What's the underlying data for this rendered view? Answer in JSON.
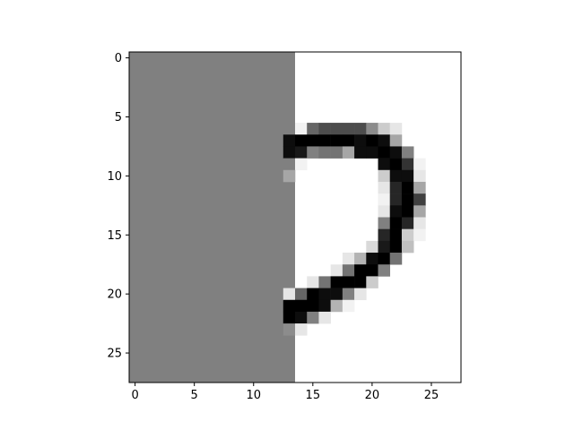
{
  "chart_data": {
    "type": "heatmap",
    "title": "",
    "xlabel": "",
    "ylabel": "",
    "colormap": "gray_r",
    "image_size": [
      28,
      28
    ],
    "xlim": [
      -0.5,
      27.5
    ],
    "ylim": [
      27.5,
      -0.5
    ],
    "x_ticks": [
      0,
      5,
      10,
      15,
      20,
      25
    ],
    "y_ticks": [
      0,
      5,
      10,
      15,
      20,
      25
    ],
    "x_tick_labels": [
      "0",
      "5",
      "10",
      "15",
      "20",
      "25"
    ],
    "y_tick_labels": [
      "0",
      "5",
      "10",
      "15",
      "20",
      "25"
    ],
    "masked_region": {
      "columns": [
        0,
        13
      ],
      "value": 0.5,
      "color": "#808080"
    },
    "pixels": [
      {
        "r": 6,
        "c": 14,
        "v": 0.05
      },
      {
        "r": 6,
        "c": 15,
        "v": 0.6
      },
      {
        "r": 6,
        "c": 16,
        "v": 0.7
      },
      {
        "r": 6,
        "c": 17,
        "v": 0.7
      },
      {
        "r": 6,
        "c": 18,
        "v": 0.7
      },
      {
        "r": 6,
        "c": 19,
        "v": 0.7
      },
      {
        "r": 6,
        "c": 20,
        "v": 0.45
      },
      {
        "r": 6,
        "c": 21,
        "v": 0.2
      },
      {
        "r": 6,
        "c": 22,
        "v": 0.1
      },
      {
        "r": 7,
        "c": 13,
        "v": 0.95
      },
      {
        "r": 7,
        "c": 14,
        "v": 1.0
      },
      {
        "r": 7,
        "c": 15,
        "v": 1.0
      },
      {
        "r": 7,
        "c": 16,
        "v": 1.0
      },
      {
        "r": 7,
        "c": 17,
        "v": 1.0
      },
      {
        "r": 7,
        "c": 18,
        "v": 1.0
      },
      {
        "r": 7,
        "c": 19,
        "v": 0.95
      },
      {
        "r": 7,
        "c": 20,
        "v": 1.0
      },
      {
        "r": 7,
        "c": 21,
        "v": 0.95
      },
      {
        "r": 7,
        "c": 22,
        "v": 0.35
      },
      {
        "r": 8,
        "c": 13,
        "v": 0.95
      },
      {
        "r": 8,
        "c": 14,
        "v": 0.9
      },
      {
        "r": 8,
        "c": 15,
        "v": 0.5
      },
      {
        "r": 8,
        "c": 16,
        "v": 0.55
      },
      {
        "r": 8,
        "c": 17,
        "v": 0.55
      },
      {
        "r": 8,
        "c": 18,
        "v": 0.35
      },
      {
        "r": 8,
        "c": 19,
        "v": 0.95
      },
      {
        "r": 8,
        "c": 20,
        "v": 0.95
      },
      {
        "r": 8,
        "c": 21,
        "v": 1.0
      },
      {
        "r": 8,
        "c": 22,
        "v": 0.95
      },
      {
        "r": 8,
        "c": 23,
        "v": 0.5
      },
      {
        "r": 9,
        "c": 13,
        "v": 0.5
      },
      {
        "r": 9,
        "c": 14,
        "v": 0.05
      },
      {
        "r": 9,
        "c": 21,
        "v": 0.95
      },
      {
        "r": 9,
        "c": 22,
        "v": 1.0
      },
      {
        "r": 9,
        "c": 23,
        "v": 0.8
      },
      {
        "r": 9,
        "c": 24,
        "v": 0.05
      },
      {
        "r": 10,
        "c": 13,
        "v": 0.35
      },
      {
        "r": 10,
        "c": 21,
        "v": 0.2
      },
      {
        "r": 10,
        "c": 22,
        "v": 0.95
      },
      {
        "r": 10,
        "c": 23,
        "v": 0.95
      },
      {
        "r": 10,
        "c": 24,
        "v": 0.1
      },
      {
        "r": 11,
        "c": 21,
        "v": 0.1
      },
      {
        "r": 11,
        "c": 22,
        "v": 0.85
      },
      {
        "r": 11,
        "c": 23,
        "v": 1.0
      },
      {
        "r": 11,
        "c": 24,
        "v": 0.35
      },
      {
        "r": 12,
        "c": 21,
        "v": 0.05
      },
      {
        "r": 12,
        "c": 22,
        "v": 0.85
      },
      {
        "r": 12,
        "c": 23,
        "v": 1.0
      },
      {
        "r": 12,
        "c": 24,
        "v": 0.75
      },
      {
        "r": 13,
        "c": 21,
        "v": 0.1
      },
      {
        "r": 13,
        "c": 22,
        "v": 0.95
      },
      {
        "r": 13,
        "c": 23,
        "v": 1.0
      },
      {
        "r": 13,
        "c": 24,
        "v": 0.35
      },
      {
        "r": 14,
        "c": 21,
        "v": 0.5
      },
      {
        "r": 14,
        "c": 22,
        "v": 1.0
      },
      {
        "r": 14,
        "c": 23,
        "v": 0.85
      },
      {
        "r": 14,
        "c": 24,
        "v": 0.1
      },
      {
        "r": 15,
        "c": 21,
        "v": 0.85
      },
      {
        "r": 15,
        "c": 22,
        "v": 1.0
      },
      {
        "r": 15,
        "c": 23,
        "v": 0.2
      },
      {
        "r": 15,
        "c": 24,
        "v": 0.05
      },
      {
        "r": 16,
        "c": 20,
        "v": 0.15
      },
      {
        "r": 16,
        "c": 21,
        "v": 0.9
      },
      {
        "r": 16,
        "c": 22,
        "v": 1.0
      },
      {
        "r": 16,
        "c": 23,
        "v": 0.25
      },
      {
        "r": 17,
        "c": 18,
        "v": 0.1
      },
      {
        "r": 17,
        "c": 19,
        "v": 0.3
      },
      {
        "r": 17,
        "c": 20,
        "v": 0.95
      },
      {
        "r": 17,
        "c": 21,
        "v": 1.0
      },
      {
        "r": 17,
        "c": 22,
        "v": 0.55
      },
      {
        "r": 18,
        "c": 17,
        "v": 0.1
      },
      {
        "r": 18,
        "c": 18,
        "v": 0.55
      },
      {
        "r": 18,
        "c": 19,
        "v": 1.0
      },
      {
        "r": 18,
        "c": 20,
        "v": 1.0
      },
      {
        "r": 18,
        "c": 21,
        "v": 0.5
      },
      {
        "r": 19,
        "c": 15,
        "v": 0.1
      },
      {
        "r": 19,
        "c": 16,
        "v": 0.55
      },
      {
        "r": 19,
        "c": 17,
        "v": 1.0
      },
      {
        "r": 19,
        "c": 18,
        "v": 1.0
      },
      {
        "r": 19,
        "c": 19,
        "v": 1.0
      },
      {
        "r": 19,
        "c": 20,
        "v": 0.2
      },
      {
        "r": 20,
        "c": 13,
        "v": 0.1
      },
      {
        "r": 20,
        "c": 14,
        "v": 0.6
      },
      {
        "r": 20,
        "c": 15,
        "v": 1.0
      },
      {
        "r": 20,
        "c": 16,
        "v": 0.95
      },
      {
        "r": 20,
        "c": 17,
        "v": 0.95
      },
      {
        "r": 20,
        "c": 18,
        "v": 0.5
      },
      {
        "r": 20,
        "c": 19,
        "v": 0.1
      },
      {
        "r": 21,
        "c": 13,
        "v": 1.0
      },
      {
        "r": 21,
        "c": 14,
        "v": 1.0
      },
      {
        "r": 21,
        "c": 15,
        "v": 1.0
      },
      {
        "r": 21,
        "c": 16,
        "v": 0.95
      },
      {
        "r": 21,
        "c": 17,
        "v": 0.3
      },
      {
        "r": 21,
        "c": 18,
        "v": 0.05
      },
      {
        "r": 22,
        "c": 13,
        "v": 1.0
      },
      {
        "r": 22,
        "c": 14,
        "v": 0.95
      },
      {
        "r": 22,
        "c": 15,
        "v": 0.5
      },
      {
        "r": 22,
        "c": 16,
        "v": 0.1
      },
      {
        "r": 23,
        "c": 13,
        "v": 0.45
      },
      {
        "r": 23,
        "c": 14,
        "v": 0.1
      }
    ]
  }
}
